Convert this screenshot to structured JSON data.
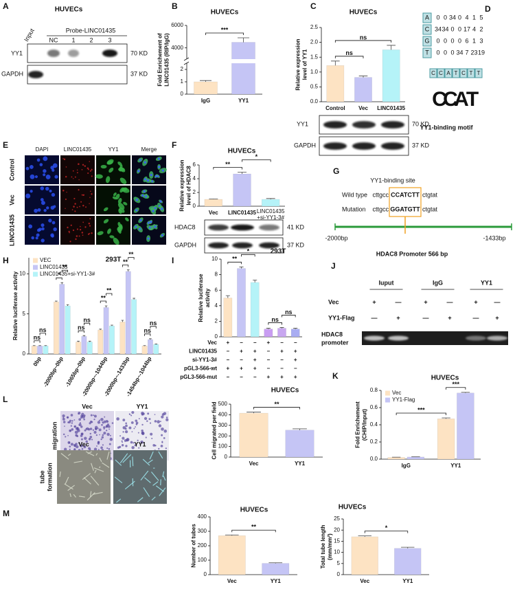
{
  "panel_letters": [
    "A",
    "B",
    "C",
    "D",
    "E",
    "F",
    "G",
    "H",
    "I",
    "J",
    "K",
    "L",
    "M"
  ],
  "blot_A": {
    "title": "HUVECs",
    "probe": "Probe-LINC01435",
    "lanes": [
      "Input",
      "NC",
      "1",
      "2",
      "3"
    ],
    "rows": [
      "YY1",
      "GAPDH"
    ],
    "sizes": [
      "70 KD",
      "37 KD"
    ]
  },
  "blot_C": {
    "rows": [
      "YY1",
      "GAPDH"
    ],
    "sizes": [
      "70 KD",
      "37 KD"
    ]
  },
  "panel_D": {
    "columns": [
      "DAPI",
      "LINC01435",
      "YY1",
      "Merge"
    ],
    "rows": [
      "Control",
      "Vec",
      "LINC01435"
    ]
  },
  "blot_E": {
    "rows": [
      "HDAC8",
      "GAPDH"
    ],
    "sizes": [
      "41 KD",
      "37 KD"
    ]
  },
  "motif_F": {
    "bases": [
      "A",
      "C",
      "G",
      "T"
    ],
    "counts": [
      [
        "0",
        "0",
        "34",
        "0",
        "4",
        "1",
        "5"
      ],
      [
        "34",
        "34",
        "0",
        "0",
        "17",
        "4",
        "2"
      ],
      [
        "0",
        "0",
        "0",
        "0",
        "6",
        "1",
        "3"
      ],
      [
        "0",
        "0",
        "0",
        "34",
        "7",
        "23",
        "19"
      ]
    ],
    "sequence": [
      "C",
      "C",
      "A",
      "T",
      "C",
      "T",
      "T"
    ],
    "logo": [
      "C",
      "C",
      "A",
      "T"
    ],
    "caption": "YY1-binding motif"
  },
  "site_G": {
    "title": "YY1-binding site",
    "rows": [
      {
        "label": "Wild type",
        "left": "cttgcc",
        "site": "CCATCTT",
        "right": "ctgtat"
      },
      {
        "label": "Mutation",
        "left": "cttgcc",
        "site": "GGATGTT",
        "right": "ctgtat"
      }
    ],
    "start": "-2000bp",
    "end": "-1433bp",
    "caption": "HDAC8 Promoter 566 bp"
  },
  "gel_J": {
    "groups": [
      "Iuput",
      "IgG",
      "YY1"
    ],
    "rows": [
      {
        "label": "Vec",
        "signs": [
          "+",
          "—",
          "+",
          "—",
          "+",
          "—"
        ]
      },
      {
        "label": "YY1-Flag",
        "signs": [
          "—",
          "+",
          "—",
          "+",
          "—",
          "+"
        ]
      }
    ],
    "band_label": [
      "HDAC8",
      "promoter"
    ]
  },
  "images_L": {
    "columns": [
      "Vec",
      "YY1"
    ],
    "row": [
      "migration"
    ]
  },
  "images_M": {
    "columns": [
      "Vec",
      "YY1"
    ],
    "row": [
      "tube",
      "formation"
    ]
  },
  "chart_data": [
    {
      "type": "bar",
      "title": "HUVECs",
      "ylabel": [
        "Fold Enrichement of",
        "LINC01435 (RIP/IgG)"
      ],
      "categories": [
        "IgG",
        "YY1"
      ],
      "values": [
        1,
        4500
      ],
      "errors": [
        0.1,
        400
      ],
      "colors": [
        "#fde3c3",
        "#c5c5f5"
      ],
      "ylim": [
        0,
        6000
      ],
      "axis_break": [
        2.5,
        3000
      ],
      "yticks": [
        0,
        1,
        2,
        4000,
        6000
      ],
      "significance": [
        {
          "text": "***",
          "between": [
            [
              0
            ],
            [
              1
            ]
          ]
        }
      ]
    },
    {
      "type": "bar",
      "title": "HUVECs",
      "ylabel": [
        "Relative expression",
        "level of YY1"
      ],
      "categories": [
        "Control",
        "Vec",
        "LINC01435"
      ],
      "values": [
        1.22,
        0.82,
        1.75
      ],
      "errors": [
        0.15,
        0.05,
        0.15
      ],
      "colors": [
        "#fde3c3",
        "#c5c5f5",
        "#b5f3f8"
      ],
      "ylim": [
        0,
        2.5
      ],
      "yticks": [
        {
          "value": 0,
          "label": "0.0"
        },
        {
          "value": 0.5,
          "label": "0.5"
        },
        {
          "value": 1,
          "label": "1.0"
        },
        {
          "value": 1.5,
          "label": "1.5"
        },
        {
          "value": 2,
          "label": "2.0"
        },
        {
          "value": 2.5,
          "label": "2.5"
        }
      ],
      "significance": [
        {
          "text": "ns",
          "between": [
            [
              0
            ],
            [
              1
            ]
          ]
        },
        {
          "text": "ns",
          "between": [
            [
              0
            ],
            [
              2
            ]
          ]
        }
      ]
    },
    {
      "type": "bar",
      "title": "HUVECs",
      "ylabel": [
        "Relative expression",
        "level of HDAC8"
      ],
      "categories": [
        "Vec",
        "LINC01435",
        "LINC01435\n+si-YY1-3#"
      ],
      "values": [
        1,
        4.7,
        1
      ],
      "errors": [
        0.05,
        0.25,
        0.12
      ],
      "colors": [
        "#fde3c3",
        "#c5c5f5",
        "#b5f3f8"
      ],
      "ylim": [
        0,
        6
      ],
      "yticks": [
        0,
        2,
        4,
        6
      ],
      "significance": [
        {
          "text": "**",
          "between": [
            [
              0
            ],
            [
              1
            ]
          ]
        },
        {
          "text": "*",
          "between": [
            [
              1
            ],
            [
              2
            ]
          ]
        }
      ]
    },
    {
      "type": "bar",
      "title": "293T",
      "ylabel": [
        "Relative luciferase activity"
      ],
      "categories": [
        "0bp",
        "-2000bp~0bp",
        "-1065bp~0bp",
        "-2000bp~-1044bp",
        "-2000bp~-1433bp",
        "-1454bp~-1044bp"
      ],
      "series": [
        {
          "name": "VEC",
          "color": "#fde3c3",
          "values": [
            1,
            6.5,
            1.5,
            3,
            4,
            1
          ],
          "errors": [
            0.05,
            0.1,
            0.1,
            0.1,
            0.2,
            0.05
          ]
        },
        {
          "name": "LINC01435",
          "color": "#c5c5f5",
          "values": [
            1,
            8.7,
            2.2,
            5.8,
            10.3,
            1.8
          ],
          "errors": [
            0.05,
            0.2,
            0.1,
            0.2,
            0.2,
            0.1
          ]
        },
        {
          "name": "LINC01435+si-YY1-3#",
          "color": "#b5f3f8",
          "values": [
            1,
            6,
            1.5,
            3.5,
            6.8,
            1.2
          ],
          "errors": [
            0.05,
            0.15,
            0.1,
            0.1,
            0.15,
            0.05
          ]
        }
      ],
      "ylim": [
        0,
        12
      ],
      "yticks": [
        0,
        5,
        10
      ],
      "legend": "upper left",
      "significance": [
        {
          "text": "ns",
          "between": [
            [
              0,
              0
            ],
            [
              0,
              1
            ]
          ]
        },
        {
          "text": "ns",
          "between": [
            [
              0,
              1
            ],
            [
              0,
              2
            ]
          ]
        },
        {
          "text": "*",
          "between": [
            [
              1,
              0
            ],
            [
              1,
              1
            ]
          ]
        },
        {
          "text": "**",
          "between": [
            [
              1,
              1
            ],
            [
              1,
              2
            ]
          ]
        },
        {
          "text": "ns",
          "between": [
            [
              2,
              0
            ],
            [
              2,
              1
            ]
          ]
        },
        {
          "text": "ns",
          "between": [
            [
              2,
              1
            ],
            [
              2,
              2
            ]
          ]
        },
        {
          "text": "**",
          "between": [
            [
              3,
              0
            ],
            [
              3,
              1
            ]
          ]
        },
        {
          "text": "**",
          "between": [
            [
              3,
              1
            ],
            [
              3,
              2
            ]
          ]
        },
        {
          "text": "**",
          "between": [
            [
              4,
              0
            ],
            [
              4,
              1
            ]
          ]
        },
        {
          "text": "**",
          "between": [
            [
              4,
              1
            ],
            [
              4,
              2
            ]
          ]
        },
        {
          "text": "ns",
          "between": [
            [
              5,
              0
            ],
            [
              5,
              1
            ]
          ]
        },
        {
          "text": "ns",
          "between": [
            [
              5,
              1
            ],
            [
              5,
              2
            ]
          ]
        }
      ]
    },
    {
      "type": "bar",
      "title": "293T",
      "ylabel": [
        "Relative luciferase",
        "activity"
      ],
      "values": [
        5,
        8.8,
        7,
        1,
        1.1,
        1
      ],
      "errors": [
        0.3,
        0.2,
        0.3,
        0.1,
        0.1,
        0.1
      ],
      "colors": [
        "#fde3c3",
        "#c5c5f5",
        "#b5f3f8",
        "#c99df2",
        "#c8a7f0",
        "#a9adf2"
      ],
      "ylim": [
        0,
        10
      ],
      "yticks": [
        0,
        2,
        4,
        6,
        8,
        10
      ],
      "significance": [
        {
          "text": "**",
          "between": [
            [
              0
            ],
            [
              1
            ]
          ]
        },
        {
          "text": "*",
          "between": [
            [
              1
            ],
            [
              2
            ]
          ]
        },
        {
          "text": "ns",
          "between": [
            [
              3
            ],
            [
              4
            ]
          ]
        },
        {
          "text": "ns",
          "between": [
            [
              4
            ],
            [
              5
            ]
          ]
        }
      ],
      "table": {
        "rows": [
          {
            "label": "Vec",
            "signs": [
              "+",
              "−",
              "−",
              "+",
              "−",
              "−"
            ]
          },
          {
            "label": "LINC01435",
            "signs": [
              "−",
              "+",
              "+",
              "−",
              "+",
              "+"
            ]
          },
          {
            "label": "si-YY1-3#",
            "signs": [
              "−",
              "−",
              "+",
              "−",
              "−",
              "+"
            ]
          },
          {
            "label": "pGL3-566-wt",
            "signs": [
              "+",
              "+",
              "+",
              "−",
              "−",
              "−"
            ]
          },
          {
            "label": "pGL3-566-mut",
            "signs": [
              "−",
              "−",
              "−",
              "+",
              "+",
              "+"
            ]
          }
        ]
      }
    },
    {
      "type": "bar",
      "title": "HUVECs",
      "ylabel": [
        "Fold Enrichement",
        "(CHIP/Input)"
      ],
      "categories": [
        "IgG",
        "YY1"
      ],
      "series": [
        {
          "name": "Vec",
          "color": "#fde3c3",
          "values": [
            0.02,
            0.47
          ],
          "errors": [
            0.003,
            0.01
          ]
        },
        {
          "name": "YY1-Flag",
          "color": "#c5c5f5",
          "values": [
            0.025,
            0.77
          ],
          "errors": [
            0.003,
            0.008
          ]
        }
      ],
      "ylim": [
        0,
        0.8
      ],
      "yticks": [
        {
          "value": 0,
          "label": "0.0"
        },
        {
          "value": 0.2,
          "label": "0.2"
        },
        {
          "value": 0.4,
          "label": "0.4"
        },
        {
          "value": 0.6,
          "label": "0.6"
        },
        {
          "value": 0.8,
          "label": "0.8"
        }
      ],
      "legend": "upper left",
      "significance": [
        {
          "text": "***",
          "between": [
            [
              1,
              0
            ],
            [
              1,
              1
            ]
          ]
        },
        {
          "text": "***",
          "between": [
            [
              0,
              0
            ],
            [
              1,
              0
            ]
          ]
        }
      ]
    },
    {
      "type": "bar",
      "title": "HUVECs",
      "ylabel": [
        "Cell migrated per field"
      ],
      "categories": [
        "Vec",
        "YY1"
      ],
      "values": [
        415,
        255
      ],
      "errors": [
        10,
        12
      ],
      "colors": [
        "#fde3c3",
        "#c5c5f5"
      ],
      "ylim": [
        0,
        500
      ],
      "yticks": [
        0,
        100,
        200,
        300,
        400,
        500
      ],
      "significance": [
        {
          "text": "**",
          "between": [
            [
              0
            ],
            [
              1
            ]
          ]
        }
      ]
    },
    {
      "type": "bar",
      "title": "HUVECs",
      "ylabel": [
        "Number of tubes"
      ],
      "categories": [
        "Vec",
        "YY1"
      ],
      "values": [
        270,
        78
      ],
      "errors": [
        5,
        4
      ],
      "colors": [
        "#fde3c3",
        "#c5c5f5"
      ],
      "ylim": [
        0,
        400
      ],
      "yticks": [
        0,
        100,
        200,
        300,
        400
      ],
      "significance": [
        {
          "text": "**",
          "between": [
            [
              0
            ],
            [
              1
            ]
          ]
        }
      ]
    },
    {
      "type": "bar",
      "title": "HUVECs",
      "ylabel": [
        "Total tube length",
        "(mm/mm²)"
      ],
      "categories": [
        "Vec",
        "YY1"
      ],
      "values": [
        17,
        11.8
      ],
      "errors": [
        0.4,
        0.5
      ],
      "colors": [
        "#fde3c3",
        "#c5c5f5"
      ],
      "ylim": [
        0,
        25
      ],
      "yticks": [
        0,
        5,
        10,
        15,
        20,
        25
      ],
      "significance": [
        {
          "text": "*",
          "between": [
            [
              0
            ],
            [
              1
            ]
          ]
        }
      ]
    }
  ]
}
